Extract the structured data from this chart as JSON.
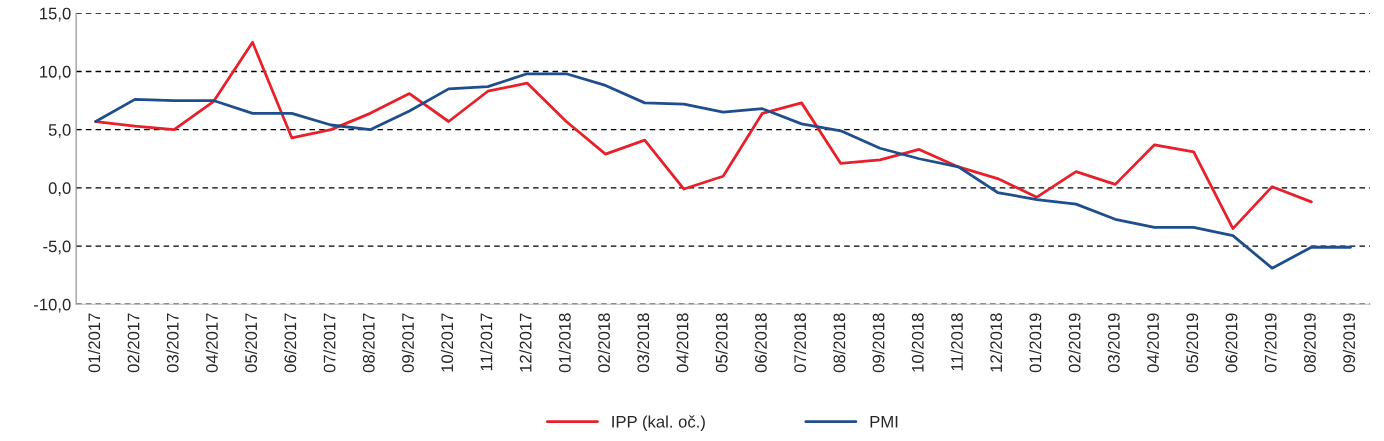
{
  "chart_data": {
    "type": "line",
    "categories": [
      "01/2017",
      "02/2017",
      "03/2017",
      "04/2017",
      "05/2017",
      "06/2017",
      "07/2017",
      "08/2017",
      "09/2017",
      "10/2017",
      "11/2017",
      "12/2017",
      "01/2018",
      "02/2018",
      "03/2018",
      "04/2018",
      "05/2018",
      "06/2018",
      "07/2018",
      "08/2018",
      "09/2018",
      "10/2018",
      "11/2018",
      "12/2018",
      "01/2019",
      "02/2019",
      "03/2019",
      "04/2019",
      "05/2019",
      "06/2019",
      "07/2019",
      "08/2019",
      "09/2019"
    ],
    "series": [
      {
        "name": "IPP (kal. oč.)",
        "color": "#e8202a",
        "values": [
          5.7,
          5.3,
          5.0,
          7.4,
          12.5,
          4.3,
          5.0,
          6.4,
          8.1,
          5.7,
          8.3,
          9.0,
          5.7,
          2.9,
          4.1,
          -0.1,
          1.0,
          6.4,
          7.3,
          2.1,
          2.4,
          3.3,
          1.8,
          0.8,
          -0.8,
          1.4,
          0.3,
          3.7,
          3.1,
          -3.5,
          0.1,
          -1.2,
          null
        ]
      },
      {
        "name": "PMI",
        "color": "#1f4e8c",
        "values": [
          5.7,
          7.6,
          7.5,
          7.5,
          6.4,
          6.4,
          5.4,
          5.0,
          6.6,
          8.5,
          8.7,
          9.8,
          9.8,
          8.8,
          7.3,
          7.2,
          6.5,
          6.8,
          5.5,
          4.9,
          3.4,
          2.5,
          1.8,
          -0.4,
          -1.0,
          -1.4,
          -2.7,
          -3.4,
          -3.4,
          -4.1,
          -6.9,
          -5.1,
          -5.1
        ]
      }
    ],
    "ylim": [
      -10,
      15
    ],
    "yticks": [
      {
        "value": -10,
        "label": "-10,0"
      },
      {
        "value": -5,
        "label": "-5,0"
      },
      {
        "value": 0,
        "label": "0,0"
      },
      {
        "value": 5,
        "label": "5,0"
      },
      {
        "value": 10,
        "label": "10,0"
      },
      {
        "value": 15,
        "label": "15,0"
      }
    ],
    "grid": "y",
    "legend": "bottom",
    "marker": "none",
    "line_style": "solid"
  }
}
